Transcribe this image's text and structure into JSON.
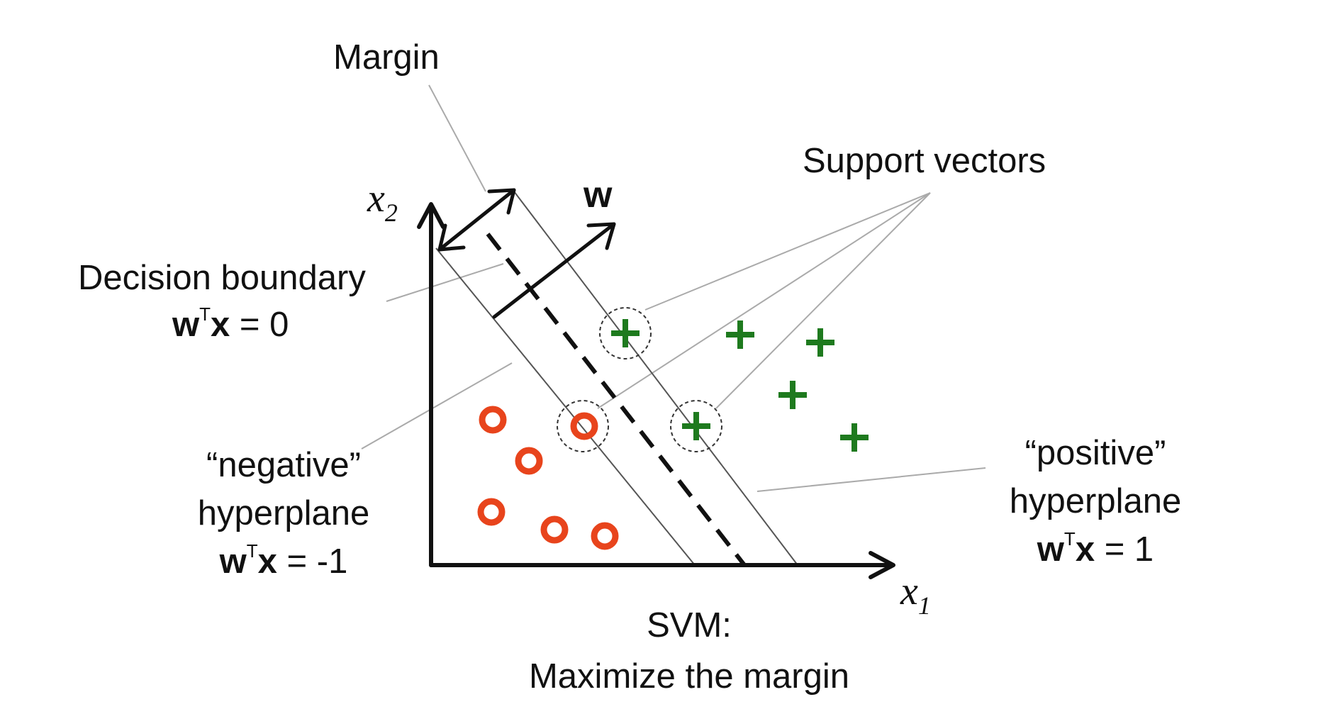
{
  "labels": {
    "margin": "Margin",
    "support_vectors": "Support vectors",
    "w_vector": "w",
    "decision_boundary": {
      "title": "Decision boundary",
      "eq_bold_left": "w",
      "eq_sup": "T",
      "eq_bold_right": "x",
      "eq_rest": " = 0"
    },
    "negative_hyperplane": {
      "line1": "“negative”",
      "line2": "hyperplane",
      "eq_bold_left": "w",
      "eq_sup": "T",
      "eq_bold_right": "x",
      "eq_rest": " = -1"
    },
    "positive_hyperplane": {
      "line1": "“positive”",
      "line2": "hyperplane",
      "eq_bold_left": "w",
      "eq_sup": "T",
      "eq_bold_right": "x",
      "eq_rest": " = 1"
    },
    "x1": {
      "var": "x",
      "sub": "1"
    },
    "x2": {
      "var": "x",
      "sub": "2"
    },
    "caption": {
      "line1": "SVM:",
      "line2": "Maximize the margin"
    }
  },
  "colors": {
    "negative_class": "#e8441c",
    "positive_class": "#1e7a1e",
    "axes": "#111111",
    "hyperplanes": "#555555",
    "leader_lines": "#aaaaaa",
    "support_vector_ring": "#333333"
  },
  "points": {
    "negative_count": 6,
    "positive_count": 6,
    "support_vectors_count": 3
  }
}
